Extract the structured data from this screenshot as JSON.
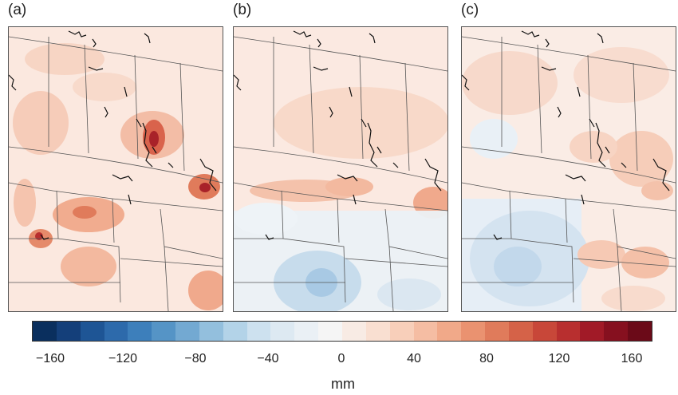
{
  "panels": [
    {
      "label": "(a)"
    },
    {
      "label": "(b)"
    },
    {
      "label": "(c)"
    }
  ],
  "colorbar": {
    "unit": "mm",
    "ticks": [
      "−160",
      "−120",
      "−80",
      "−40",
      "0",
      "40",
      "80",
      "120",
      "160"
    ],
    "range": [
      -170,
      170
    ],
    "colors": [
      "#0a2f5e",
      "#143f7a",
      "#1e5595",
      "#2d6aab",
      "#3d7fbb",
      "#5594c6",
      "#73a9d2",
      "#93bfdd",
      "#b3d3e8",
      "#cde1ef",
      "#dde9f2",
      "#eaf0f5",
      "#f5f5f5",
      "#f8ebe4",
      "#f9dfd1",
      "#f8cfba",
      "#f5bda3",
      "#f1a989",
      "#ea9270",
      "#e07b5b",
      "#d56248",
      "#c84739",
      "#b82f2f",
      "#a11a27",
      "#86101f",
      "#6b0a18"
    ]
  },
  "colors": {
    "coast": "#111111",
    "border": "#555555",
    "warm_light": "#fbe6dc",
    "warm_mid": "#f3bca4",
    "warm_strong": "#d7614a",
    "cool_light": "#e3edf5",
    "cool_mid": "#b3d0e7"
  }
}
